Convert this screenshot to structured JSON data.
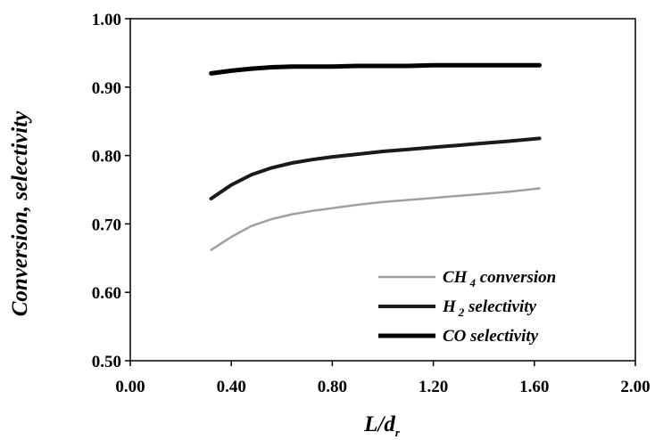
{
  "chart_data": {
    "type": "line",
    "title": "",
    "xlabel": {
      "main": "L/d",
      "sub": "r"
    },
    "ylabel": "Conversion, selectivity",
    "xlim": [
      0.0,
      2.0
    ],
    "ylim": [
      0.5,
      1.0
    ],
    "xticks": [
      "0.00",
      "0.40",
      "0.80",
      "1.20",
      "1.60",
      "2.00"
    ],
    "yticks": [
      "0.50",
      "0.60",
      "0.70",
      "0.80",
      "0.90",
      "1.00"
    ],
    "grid": false,
    "legend_position": "bottom-right",
    "series": [
      {
        "name": "CH 4 conversion",
        "legend": {
          "pre": "CH",
          "sub": "4",
          "post": " conversion"
        },
        "color": "#a0a0a0",
        "x": [
          0.32,
          0.4,
          0.48,
          0.56,
          0.64,
          0.72,
          0.8,
          0.9,
          1.0,
          1.1,
          1.2,
          1.3,
          1.4,
          1.5,
          1.62
        ],
        "y": [
          0.662,
          0.681,
          0.697,
          0.707,
          0.714,
          0.719,
          0.723,
          0.728,
          0.732,
          0.735,
          0.738,
          0.741,
          0.744,
          0.747,
          0.752
        ]
      },
      {
        "name": "H 2 selectivity",
        "legend": {
          "pre": "H",
          "sub": "2",
          "post": "  selectivity"
        },
        "color": "#1a1a1a",
        "x": [
          0.32,
          0.4,
          0.48,
          0.56,
          0.64,
          0.72,
          0.8,
          0.9,
          1.0,
          1.1,
          1.2,
          1.3,
          1.4,
          1.5,
          1.62
        ],
        "y": [
          0.737,
          0.757,
          0.772,
          0.782,
          0.789,
          0.794,
          0.798,
          0.802,
          0.806,
          0.809,
          0.812,
          0.815,
          0.818,
          0.821,
          0.825
        ]
      },
      {
        "name": "CO selectivity",
        "legend": {
          "pre": "CO",
          "sub": "",
          "post": " selectivity"
        },
        "color": "#000000",
        "x": [
          0.32,
          0.4,
          0.48,
          0.56,
          0.64,
          0.72,
          0.8,
          0.9,
          1.0,
          1.1,
          1.2,
          1.3,
          1.4,
          1.5,
          1.62
        ],
        "y": [
          0.92,
          0.924,
          0.927,
          0.929,
          0.93,
          0.93,
          0.93,
          0.931,
          0.931,
          0.931,
          0.932,
          0.932,
          0.932,
          0.932,
          0.932
        ]
      }
    ]
  }
}
